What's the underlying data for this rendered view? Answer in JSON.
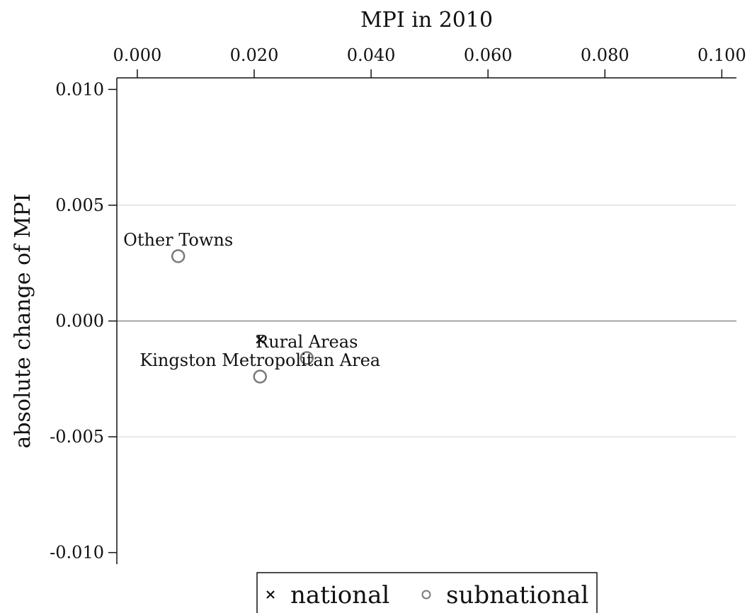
{
  "chart_data": {
    "type": "scatter",
    "title": "",
    "xlabel": "MPI in 2010",
    "ylabel": "absolute change of MPI",
    "xlim": [
      -0.0035,
      0.1025
    ],
    "ylim": [
      -0.0105,
      0.0105
    ],
    "x_ticks": [
      0.0,
      0.02,
      0.04,
      0.06,
      0.08,
      0.1
    ],
    "x_tick_labels": [
      "0.000",
      "0.020",
      "0.040",
      "0.060",
      "0.080",
      "0.100"
    ],
    "y_ticks": [
      0.01,
      0.005,
      0.0,
      -0.005,
      -0.01
    ],
    "y_tick_labels": [
      "0.010",
      "0.005",
      "0.000",
      "-0.005",
      "-0.010"
    ],
    "x_axis_position": "top",
    "gridlines_y": [
      0.005,
      -0.005
    ],
    "zero_line": 0.0,
    "series": [
      {
        "name": "national",
        "marker": "x",
        "color": "#111111",
        "points": [
          {
            "x": 0.021,
            "y": -0.0008,
            "label": ""
          }
        ]
      },
      {
        "name": "subnational",
        "marker": "circle",
        "color": "#7a7a7a",
        "points": [
          {
            "x": 0.007,
            "y": 0.0028,
            "label": "Other Towns"
          },
          {
            "x": 0.029,
            "y": -0.0016,
            "label": "Rural Areas"
          },
          {
            "x": 0.021,
            "y": -0.0024,
            "label": "Kingston Metropolitan Area"
          }
        ]
      }
    ],
    "legend": {
      "position": "bottom-center",
      "entries": [
        {
          "label": "national",
          "marker": "x"
        },
        {
          "label": "subnational",
          "marker": "circle"
        }
      ]
    }
  }
}
